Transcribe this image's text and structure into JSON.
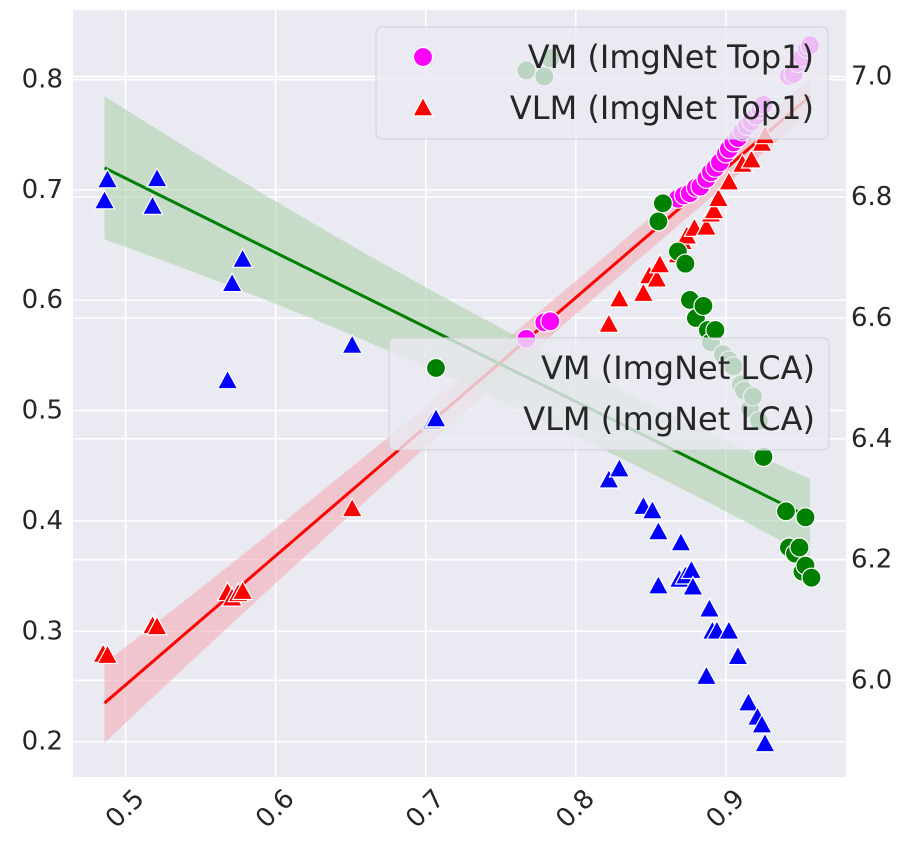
{
  "chart_data": {
    "type": "scatter",
    "title": "",
    "xlabel": "",
    "ylabel_left": "",
    "ylabel_right": "",
    "xlim": [
      0.465,
      0.98
    ],
    "ylim_left": [
      0.168,
      0.863
    ],
    "ylim_right": [
      5.84,
      7.11
    ],
    "grid": true,
    "x_ticks": [
      "0.5",
      "0.6",
      "0.7",
      "0.8",
      "0.9"
    ],
    "x_tick_values": [
      0.5,
      0.6,
      0.7,
      0.8,
      0.9
    ],
    "y_left_ticks": [
      "0.2",
      "0.3",
      "0.4",
      "0.5",
      "0.6",
      "0.7",
      "0.8"
    ],
    "y_left_tick_values": [
      0.2,
      0.3,
      0.4,
      0.5,
      0.6,
      0.7,
      0.8
    ],
    "y_right_ticks": [
      "6.0",
      "6.2",
      "6.4",
      "6.6",
      "6.8",
      "7.0"
    ],
    "y_right_tick_values": [
      6.0,
      6.2,
      6.4,
      6.6,
      6.8,
      7.0
    ],
    "legends": [
      {
        "position": "top-right",
        "entries": [
          "VM (ImgNet Top1)",
          "VLM (ImgNet Top1)"
        ]
      },
      {
        "position": "center-right",
        "entries": [
          "VM (ImgNet LCA)",
          "VLM (ImgNet LCA)"
        ]
      }
    ],
    "series": [
      {
        "name": "VM (ImgNet Top1)",
        "axis": "left",
        "marker": "circle",
        "color": "#ff00ff",
        "points": [
          [
            0.767,
            0.565
          ],
          [
            0.779,
            0.58
          ],
          [
            0.783,
            0.581
          ],
          [
            0.868,
            0.692
          ],
          [
            0.872,
            0.695
          ],
          [
            0.876,
            0.697
          ],
          [
            0.88,
            0.702
          ],
          [
            0.883,
            0.703
          ],
          [
            0.887,
            0.71
          ],
          [
            0.89,
            0.716
          ],
          [
            0.893,
            0.72
          ],
          [
            0.896,
            0.725
          ],
          [
            0.9,
            0.733
          ],
          [
            0.902,
            0.737
          ],
          [
            0.905,
            0.743
          ],
          [
            0.908,
            0.747
          ],
          [
            0.911,
            0.753
          ],
          [
            0.914,
            0.758
          ],
          [
            0.917,
            0.762
          ],
          [
            0.92,
            0.767
          ],
          [
            0.923,
            0.773
          ],
          [
            0.925,
            0.777
          ],
          [
            0.942,
            0.803
          ],
          [
            0.945,
            0.805
          ],
          [
            0.948,
            0.815
          ],
          [
            0.951,
            0.82
          ],
          [
            0.954,
            0.828
          ],
          [
            0.956,
            0.831
          ]
        ]
      },
      {
        "name": "VLM (ImgNet Top1)",
        "axis": "left",
        "marker": "triangle",
        "color": "#ff0000",
        "points": [
          [
            0.485,
            0.279
          ],
          [
            0.488,
            0.278
          ],
          [
            0.518,
            0.305
          ],
          [
            0.521,
            0.304
          ],
          [
            0.568,
            0.335
          ],
          [
            0.571,
            0.33
          ],
          [
            0.575,
            0.334
          ],
          [
            0.578,
            0.336
          ],
          [
            0.651,
            0.411
          ],
          [
            0.822,
            0.578
          ],
          [
            0.829,
            0.601
          ],
          [
            0.845,
            0.606
          ],
          [
            0.849,
            0.622
          ],
          [
            0.854,
            0.619
          ],
          [
            0.856,
            0.632
          ],
          [
            0.868,
            0.641
          ],
          [
            0.871,
            0.653
          ],
          [
            0.874,
            0.658
          ],
          [
            0.879,
            0.665
          ],
          [
            0.887,
            0.666
          ],
          [
            0.89,
            0.678
          ],
          [
            0.892,
            0.681
          ],
          [
            0.895,
            0.692
          ],
          [
            0.902,
            0.707
          ],
          [
            0.911,
            0.723
          ],
          [
            0.917,
            0.727
          ],
          [
            0.924,
            0.742
          ],
          [
            0.926,
            0.749
          ]
        ]
      },
      {
        "name": "VM (ImgNet LCA)",
        "axis": "right",
        "marker": "circle",
        "color": "#008000",
        "points": [
          [
            0.767,
            7.01
          ],
          [
            0.779,
            7.0
          ],
          [
            0.783,
            7.03
          ],
          [
            0.855,
            6.76
          ],
          [
            0.858,
            6.79
          ],
          [
            0.868,
            6.71
          ],
          [
            0.873,
            6.69
          ],
          [
            0.876,
            6.63
          ],
          [
            0.88,
            6.6
          ],
          [
            0.885,
            6.62
          ],
          [
            0.888,
            6.58
          ],
          [
            0.89,
            6.56
          ],
          [
            0.893,
            6.58
          ],
          [
            0.898,
            6.54
          ],
          [
            0.902,
            6.53
          ],
          [
            0.905,
            6.52
          ],
          [
            0.91,
            6.49
          ],
          [
            0.912,
            6.48
          ],
          [
            0.916,
            6.45
          ],
          [
            0.918,
            6.47
          ],
          [
            0.922,
            6.43
          ],
          [
            0.925,
            6.37
          ],
          [
            0.94,
            6.28
          ],
          [
            0.942,
            6.22
          ],
          [
            0.946,
            6.21
          ],
          [
            0.949,
            6.22
          ],
          [
            0.951,
            6.18
          ],
          [
            0.953,
            6.19
          ],
          [
            0.957,
            6.17
          ],
          [
            0.953,
            6.27
          ]
        ]
      },
      {
        "name": "VLM (ImgNet LCA)",
        "axis": "left",
        "marker": "triangle",
        "color": "#0000ff",
        "points": [
          [
            0.486,
            0.69
          ],
          [
            0.488,
            0.709
          ],
          [
            0.518,
            0.685
          ],
          [
            0.521,
            0.71
          ],
          [
            0.568,
            0.527
          ],
          [
            0.571,
            0.615
          ],
          [
            0.578,
            0.637
          ],
          [
            0.651,
            0.559
          ],
          [
            0.704,
            0.49
          ],
          [
            0.822,
            0.437
          ],
          [
            0.829,
            0.447
          ],
          [
            0.845,
            0.413
          ],
          [
            0.851,
            0.409
          ],
          [
            0.855,
            0.39
          ],
          [
            0.855,
            0.341
          ],
          [
            0.869,
            0.347
          ],
          [
            0.87,
            0.38
          ],
          [
            0.873,
            0.35
          ],
          [
            0.877,
            0.355
          ],
          [
            0.878,
            0.34
          ],
          [
            0.887,
            0.259
          ],
          [
            0.889,
            0.32
          ],
          [
            0.891,
            0.3
          ],
          [
            0.894,
            0.3
          ],
          [
            0.902,
            0.3
          ],
          [
            0.908,
            0.277
          ],
          [
            0.915,
            0.235
          ],
          [
            0.921,
            0.222
          ],
          [
            0.924,
            0.215
          ],
          [
            0.926,
            0.198
          ]
        ]
      }
    ],
    "regressions": [
      {
        "name": "VLM (ImgNet Top1)",
        "color": "#ff0000",
        "band_color": "#f4a6b0",
        "x": [
          0.486,
          0.956
        ],
        "y": [
          0.235,
          0.785
        ],
        "band_halfwidth": [
          0.036,
          0.016
        ]
      },
      {
        "name": "VM (ImgNet LCA)",
        "color": "#008000",
        "band_color": "#a8cfa6",
        "x": [
          0.486,
          0.956
        ],
        "y": [
          0.72,
          0.403
        ],
        "band_halfwidth": [
          0.065,
          0.035
        ]
      }
    ]
  }
}
